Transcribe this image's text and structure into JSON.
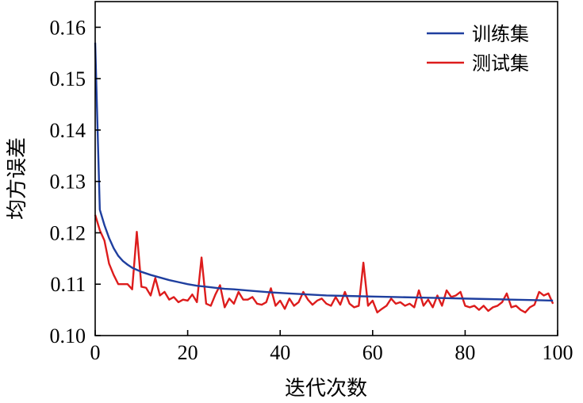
{
  "chart_data": {
    "type": "line",
    "xlabel": "迭代次数",
    "ylabel": "均方误差",
    "xlim": [
      0,
      100
    ],
    "ylim": [
      0.1,
      0.165
    ],
    "xticks": [
      0,
      20,
      40,
      60,
      80,
      100
    ],
    "yticks": [
      0.1,
      0.11,
      0.12,
      0.13,
      0.14,
      0.15,
      0.16
    ],
    "ytick_labels": [
      "0.10",
      "0.11",
      "0.12",
      "0.13",
      "0.14",
      "0.15",
      "0.16"
    ],
    "grid": false,
    "legend_position": "top-right",
    "series": [
      {
        "name": "训练集",
        "color": "#1f3f9f",
        "x": [
          0,
          1,
          2,
          3,
          4,
          5,
          6,
          7,
          8,
          9,
          10,
          12,
          14,
          16,
          18,
          20,
          22,
          24,
          26,
          28,
          30,
          34,
          38,
          42,
          46,
          50,
          55,
          60,
          65,
          70,
          75,
          80,
          85,
          90,
          95,
          99
        ],
        "y": [
          0.157,
          0.1245,
          0.1215,
          0.119,
          0.117,
          0.1155,
          0.1145,
          0.1138,
          0.1132,
          0.1128,
          0.1124,
          0.1118,
          0.1113,
          0.1108,
          0.1104,
          0.11,
          0.1097,
          0.1095,
          0.1093,
          0.1091,
          0.109,
          0.1087,
          0.1084,
          0.1082,
          0.108,
          0.1078,
          0.1077,
          0.1076,
          0.1075,
          0.1074,
          0.1073,
          0.1072,
          0.1071,
          0.107,
          0.1069,
          0.1068
        ]
      },
      {
        "name": "测试集",
        "color": "#dd1c1c",
        "x": [
          0,
          1,
          2,
          3,
          4,
          5,
          6,
          7,
          8,
          9,
          10,
          11,
          12,
          13,
          14,
          15,
          16,
          17,
          18,
          19,
          20,
          21,
          22,
          23,
          24,
          25,
          26,
          27,
          28,
          29,
          30,
          31,
          32,
          33,
          34,
          35,
          36,
          37,
          38,
          39,
          40,
          41,
          42,
          43,
          44,
          45,
          46,
          47,
          48,
          49,
          50,
          51,
          52,
          53,
          54,
          55,
          56,
          57,
          58,
          59,
          60,
          61,
          62,
          63,
          64,
          65,
          66,
          67,
          68,
          69,
          70,
          71,
          72,
          73,
          74,
          75,
          76,
          77,
          78,
          79,
          80,
          81,
          82,
          83,
          84,
          85,
          86,
          87,
          88,
          89,
          90,
          91,
          92,
          93,
          94,
          95,
          96,
          97,
          98,
          99
        ],
        "y": [
          0.1235,
          0.1205,
          0.1185,
          0.114,
          0.1118,
          0.11,
          0.11,
          0.11,
          0.109,
          0.1202,
          0.1095,
          0.1093,
          0.1078,
          0.1112,
          0.1078,
          0.1085,
          0.107,
          0.1075,
          0.1065,
          0.107,
          0.1068,
          0.108,
          0.1065,
          0.1152,
          0.1062,
          0.1058,
          0.108,
          0.1098,
          0.1055,
          0.1072,
          0.1062,
          0.1085,
          0.107,
          0.107,
          0.1075,
          0.1062,
          0.106,
          0.1065,
          0.1092,
          0.1058,
          0.1068,
          0.1052,
          0.1072,
          0.1058,
          0.1065,
          0.1085,
          0.107,
          0.106,
          0.1068,
          0.1072,
          0.1062,
          0.1058,
          0.1075,
          0.106,
          0.1085,
          0.1062,
          0.1055,
          0.1058,
          0.1142,
          0.1058,
          0.1068,
          0.1045,
          0.1052,
          0.1058,
          0.1072,
          0.1062,
          0.1065,
          0.1058,
          0.1062,
          0.1055,
          0.1088,
          0.1058,
          0.107,
          0.1055,
          0.1078,
          0.1058,
          0.1088,
          0.1075,
          0.1078,
          0.1085,
          0.1058,
          0.1055,
          0.1058,
          0.105,
          0.1058,
          0.1048,
          0.1055,
          0.1058,
          0.1065,
          0.1082,
          0.1055,
          0.1058,
          0.105,
          0.1045,
          0.1055,
          0.106,
          0.1085,
          0.1078,
          0.1082,
          0.1062
        ]
      }
    ]
  }
}
